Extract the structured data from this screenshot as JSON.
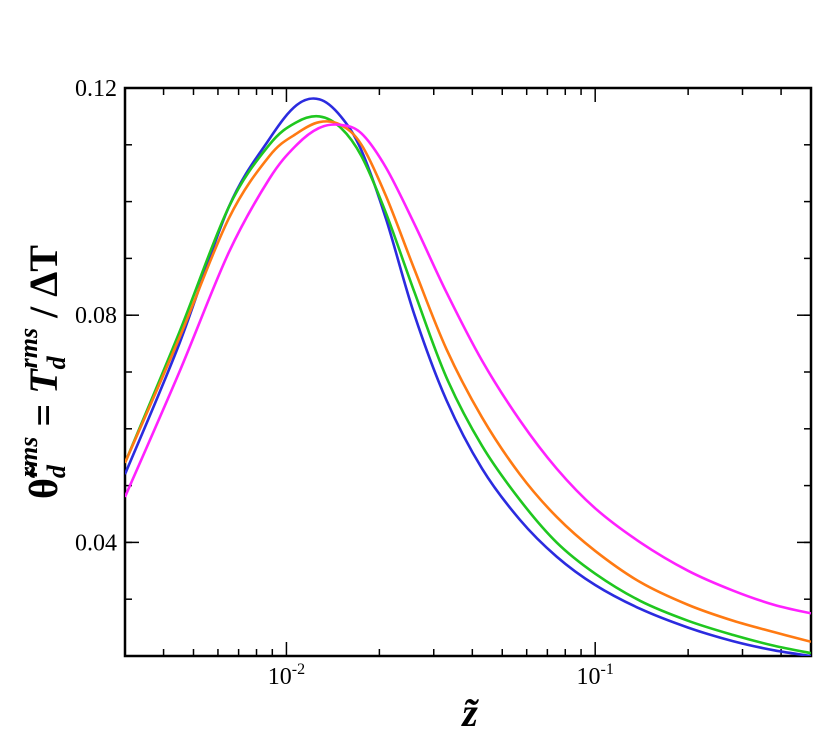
{
  "chart_data": {
    "type": "line",
    "xlabel": "z̃",
    "ylabel": {
      "lhs": "θ̃",
      "lhs_sup": "rms",
      "lhs_sub": "d",
      "eq": " = ",
      "rhs": "T",
      "rhs_sup": "rms",
      "rhs_sub": "d",
      "rest": " / ΔT"
    },
    "x_scale": "log",
    "xlim": [
      0.003,
      0.5
    ],
    "ylim": [
      0.02,
      0.12
    ],
    "x_tick_labels": [
      {
        "base": "10",
        "exp": "-2",
        "value": 0.01
      },
      {
        "base": "10",
        "exp": "-1",
        "value": 0.1
      }
    ],
    "y_ticks": [
      0.04,
      0.08,
      0.12
    ],
    "y_tick_labels": [
      "0.04",
      "0.08",
      "0.12"
    ],
    "grid": false,
    "series": [
      {
        "color": "#2b2bdf",
        "x": [
          0.003,
          0.0045,
          0.0065,
          0.0088,
          0.0108,
          0.0128,
          0.015,
          0.0175,
          0.021,
          0.026,
          0.033,
          0.043,
          0.057,
          0.075,
          0.1,
          0.14,
          0.2,
          0.28,
          0.38,
          0.5
        ],
        "y": [
          0.052,
          0.075,
          0.099,
          0.111,
          0.117,
          0.118,
          0.115,
          0.109,
          0.097,
          0.08,
          0.065,
          0.053,
          0.044,
          0.0375,
          0.0325,
          0.0283,
          0.025,
          0.0226,
          0.021,
          0.02
        ]
      },
      {
        "color": "#1fc71f",
        "x": [
          0.003,
          0.0045,
          0.0065,
          0.0088,
          0.0108,
          0.0128,
          0.015,
          0.0175,
          0.021,
          0.026,
          0.033,
          0.043,
          0.057,
          0.075,
          0.1,
          0.14,
          0.2,
          0.28,
          0.38,
          0.5
        ],
        "y": [
          0.054,
          0.077,
          0.099,
          0.11,
          0.114,
          0.115,
          0.113,
          0.108,
          0.098,
          0.084,
          0.069,
          0.057,
          0.0475,
          0.04,
          0.0345,
          0.0297,
          0.0262,
          0.0237,
          0.0218,
          0.0205
        ]
      },
      {
        "color": "#ff7a12",
        "x": [
          0.003,
          0.0045,
          0.0065,
          0.0088,
          0.0108,
          0.0128,
          0.015,
          0.0175,
          0.021,
          0.026,
          0.033,
          0.043,
          0.057,
          0.075,
          0.1,
          0.14,
          0.2,
          0.28,
          0.38,
          0.5
        ],
        "y": [
          0.054,
          0.076,
          0.097,
          0.108,
          0.112,
          0.114,
          0.1135,
          0.11,
          0.101,
          0.088,
          0.074,
          0.062,
          0.052,
          0.0445,
          0.0385,
          0.033,
          0.029,
          0.0262,
          0.0242,
          0.0225
        ]
      },
      {
        "color": "#ff21ff",
        "x": [
          0.003,
          0.0045,
          0.0065,
          0.0088,
          0.0108,
          0.0128,
          0.015,
          0.0175,
          0.021,
          0.026,
          0.033,
          0.043,
          0.057,
          0.075,
          0.1,
          0.14,
          0.2,
          0.28,
          0.38,
          0.5
        ],
        "y": [
          0.048,
          0.07,
          0.091,
          0.104,
          0.11,
          0.113,
          0.1135,
          0.112,
          0.106,
          0.096,
          0.084,
          0.072,
          0.0615,
          0.053,
          0.046,
          0.04,
          0.035,
          0.0315,
          0.029,
          0.0275
        ]
      }
    ]
  }
}
